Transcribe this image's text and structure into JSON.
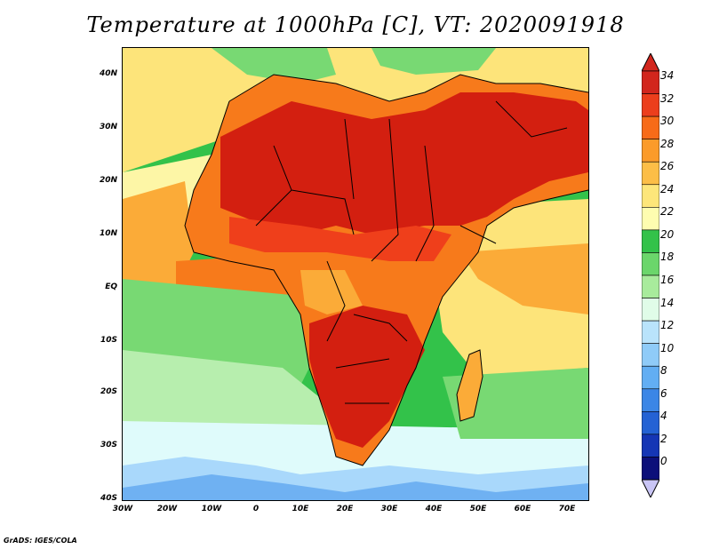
{
  "title": "Temperature at 1000hPa [C], VT: 2020091918",
  "credit": "GrADS: IGES/COLA",
  "lat_labels": [
    "40N",
    "30N",
    "20N",
    "10N",
    "EQ",
    "10S",
    "20S",
    "30S",
    "40S"
  ],
  "lon_labels": [
    "30W",
    "20W",
    "10W",
    "0",
    "10E",
    "20E",
    "30E",
    "40E",
    "50E",
    "60E",
    "70E"
  ],
  "colorbar": {
    "labels": [
      "34",
      "32",
      "30",
      "28",
      "26",
      "24",
      "22",
      "20",
      "18",
      "16",
      "14",
      "12",
      "10",
      "8",
      "6",
      "4",
      "2",
      "0"
    ],
    "colors": [
      "#d2261d",
      "#ec3e1c",
      "#f76b18",
      "#fb9b2a",
      "#fcbe47",
      "#fde67a",
      "#fefdb0",
      "#33c24a",
      "#6bd66b",
      "#a8eb9c",
      "#e0fce8",
      "#b9e3fb",
      "#8fcbf8",
      "#62aef3",
      "#3b86e6",
      "#2462d4",
      "#1536b5",
      "#0c0f7a"
    ]
  },
  "map_colors": {
    "hot": "#d31f10",
    "warm": "#ef3f1b",
    "orange": "#f77a1b",
    "light_orange": "#fbab38",
    "yellow": "#fde47a",
    "pale_yellow": "#fdf6a6",
    "green": "#33c24a",
    "light_green": "#78d973",
    "pale_green": "#b7eeae",
    "cyan": "#dffbfb",
    "light_blue": "#a9d8fb",
    "blue": "#6fb1f2"
  }
}
